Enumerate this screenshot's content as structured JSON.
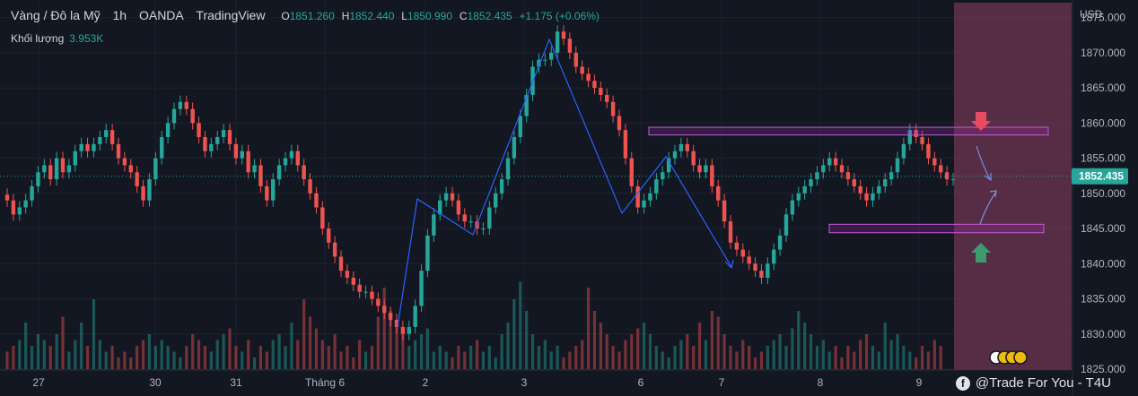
{
  "header": {
    "symbol": "Vàng / Đô la Mỹ",
    "interval": "1h",
    "broker": "OANDA",
    "platform": "TradingView",
    "open_label": "O",
    "open": "1851.260",
    "high_label": "H",
    "high": "1852.440",
    "low_label": "L",
    "low": "1850.990",
    "close_label": "C",
    "close": "1852.435",
    "change": "+1.175 (+0.06%)"
  },
  "volume": {
    "label": "Khối lượng",
    "value": "3.953K"
  },
  "watermark": "@Trade For You - T4U",
  "colors": {
    "bg": "#131722",
    "up": "#26a69a",
    "down": "#ef5350",
    "zone": "#8e3f63",
    "box": "#c45ccf",
    "arrow_down": "#e84a5f",
    "arrow_up": "#3d9970",
    "wave": "#2962ff"
  },
  "chart_data": {
    "type": "candlestick",
    "y_axis": {
      "unit": "USD",
      "min": 1825,
      "max": 1877.5,
      "ticks": [
        "1875.000",
        "1870.000",
        "1865.000",
        "1860.000",
        "1855.000",
        "1850.000",
        "1845.000",
        "1840.000",
        "1835.000",
        "1830.000",
        "1825.000"
      ]
    },
    "x_axis": {
      "labels": [
        "27",
        "30",
        "31",
        "Tháng 6",
        "2",
        "3",
        "6",
        "7",
        "8",
        "9"
      ]
    },
    "last_price": "1852.435",
    "series": [
      {
        "name": "close",
        "values": [
          1849,
          1847,
          1848,
          1849,
          1851,
          1853,
          1854,
          1852,
          1855,
          1853,
          1854,
          1856,
          1857,
          1856,
          1857,
          1858,
          1859,
          1857,
          1855,
          1854,
          1853,
          1851,
          1849,
          1852,
          1855,
          1858,
          1860,
          1862,
          1863,
          1862,
          1860,
          1858,
          1856,
          1857,
          1858,
          1859,
          1857,
          1855,
          1856,
          1853,
          1854,
          1851,
          1849,
          1852,
          1854,
          1855,
          1856,
          1854,
          1852,
          1850,
          1848,
          1845,
          1843,
          1841,
          1839,
          1838,
          1837,
          1836,
          1836,
          1835,
          1834,
          1833,
          1832,
          1831,
          1830,
          1831,
          1834,
          1839,
          1844,
          1847,
          1849,
          1850,
          1849,
          1847,
          1846,
          1846,
          1845,
          1845,
          1848,
          1850,
          1852,
          1855,
          1858,
          1861,
          1864,
          1868,
          1869,
          1869,
          1870,
          1873,
          1872,
          1870,
          1868,
          1867,
          1866,
          1865,
          1864,
          1863,
          1861,
          1859,
          1855,
          1851,
          1848,
          1849,
          1850,
          1852,
          1853,
          1855,
          1856,
          1857,
          1856,
          1854,
          1853,
          1854,
          1851,
          1849,
          1846,
          1843,
          1842,
          1841,
          1840,
          1839,
          1838,
          1840,
          1842,
          1844,
          1847,
          1849,
          1850,
          1851,
          1852,
          1853,
          1854,
          1855,
          1854,
          1853,
          1852,
          1851,
          1850,
          1849,
          1850,
          1851,
          1852,
          1853,
          1855,
          1857,
          1859,
          1858,
          1857,
          1855,
          1854,
          1853,
          1852,
          1852
        ]
      },
      {
        "name": "volume",
        "values": [
          3,
          4,
          5,
          8,
          4,
          6,
          5,
          4,
          6,
          9,
          3,
          5,
          8,
          4,
          12,
          5,
          3,
          4,
          2,
          3,
          2,
          4,
          5,
          6,
          4,
          5,
          4,
          3,
          2,
          4,
          6,
          5,
          4,
          3,
          5,
          6,
          7,
          4,
          3,
          5,
          2,
          4,
          3,
          5,
          6,
          4,
          8,
          5,
          12,
          9,
          7,
          5,
          4,
          6,
          3,
          4,
          2,
          5,
          3,
          4,
          9,
          14,
          10,
          8,
          6,
          4,
          5,
          6,
          7,
          3,
          4,
          3,
          2,
          4,
          3,
          4,
          5,
          3,
          4,
          2,
          6,
          8,
          12,
          15,
          10,
          6,
          4,
          5,
          3,
          4,
          2,
          3,
          4,
          5,
          14,
          10,
          8,
          6,
          4,
          3,
          5,
          6,
          7,
          8,
          6,
          4,
          3,
          2,
          4,
          5,
          6,
          4,
          8,
          5,
          10,
          9,
          6,
          4,
          3,
          5,
          4,
          2,
          3,
          4,
          5,
          6,
          4,
          7,
          10,
          8,
          6,
          4,
          5,
          3,
          4,
          2,
          4,
          3,
          5,
          6,
          4,
          3,
          8,
          5,
          6,
          4,
          3,
          2,
          4,
          3,
          5,
          4
        ]
      }
    ],
    "zones": [
      {
        "name": "resistance",
        "low": 1858.3,
        "high": 1859.4
      },
      {
        "name": "support",
        "low": 1844.4,
        "high": 1845.6
      }
    ]
  }
}
